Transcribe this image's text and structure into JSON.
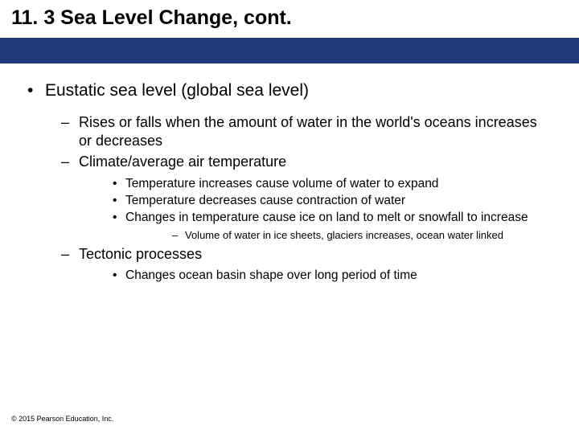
{
  "colors": {
    "title_text": "#000000",
    "band_bg": "#1f3a7a",
    "body_text": "#000000",
    "footer_text": "#000000",
    "page_bg": "#ffffff"
  },
  "title": "11. 3 Sea Level Change, cont.",
  "bullets": {
    "l1": "Eustatic sea level (global sea level)",
    "l2a": "Rises or falls when the amount of water in the world's oceans increases or decreases",
    "l2b": "Climate/average air temperature",
    "l3a": "Temperature increases cause volume of water to expand",
    "l3b": "Temperature decreases cause contraction of water",
    "l3c": "Changes in temperature cause ice on land to melt or snowfall to increase",
    "l4a": "Volume of water in ice sheets, glaciers increases, ocean water linked",
    "l2c": "Tectonic processes",
    "l3d": "Changes ocean basin shape over long period of time"
  },
  "footer": "© 2015 Pearson Education, Inc."
}
